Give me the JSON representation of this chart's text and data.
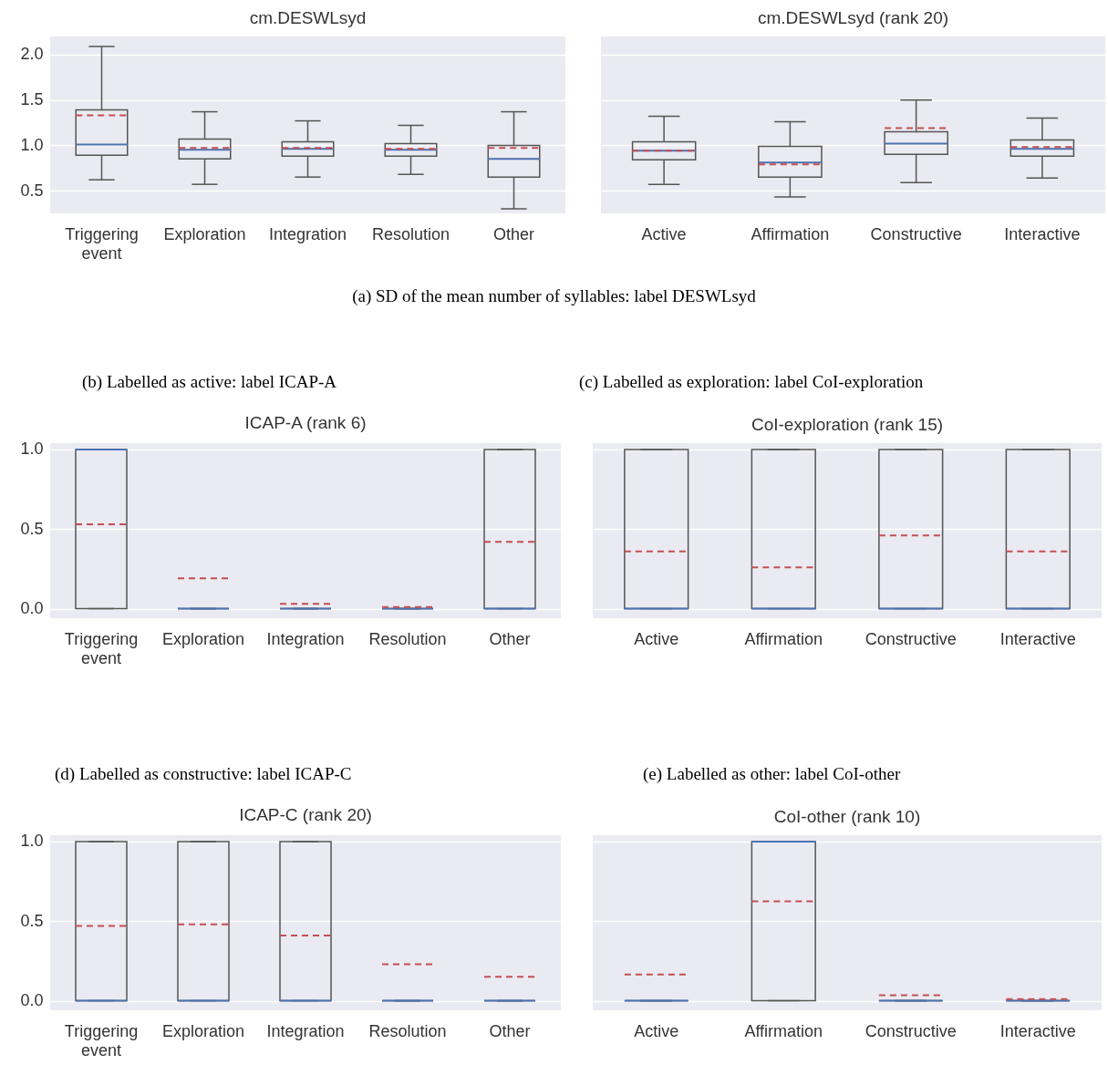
{
  "chart_data": [
    {
      "type": "box",
      "title": "cm.DESWLsyd",
      "categories": [
        "Triggering event",
        "Exploration",
        "Integration",
        "Resolution",
        "Other"
      ],
      "ylim": [
        0.25,
        2.2
      ],
      "yticks": [
        0.5,
        {
          "value": 1,
          "label": "1.0"
        },
        1.5,
        {
          "value": 2,
          "label": "2.0"
        }
      ],
      "grid": "y",
      "annotations": [
        "(a) SD of the mean number of syllables: label DESWLsyd"
      ],
      "boxes": [
        {
          "low": 0.62,
          "q1": 0.89,
          "median": 1.01,
          "q3": 1.39,
          "high": 2.09,
          "mean": 1.33
        },
        {
          "low": 0.57,
          "q1": 0.85,
          "median": 0.95,
          "q3": 1.07,
          "high": 1.37,
          "mean": 0.97
        },
        {
          "low": 0.65,
          "q1": 0.88,
          "median": 0.96,
          "q3": 1.04,
          "high": 1.27,
          "mean": 0.97
        },
        {
          "low": 0.68,
          "q1": 0.88,
          "median": 0.95,
          "q3": 1.02,
          "high": 1.22,
          "mean": 0.96
        },
        {
          "low": 0.3,
          "q1": 0.65,
          "median": 0.85,
          "q3": 1.0,
          "high": 1.37,
          "mean": 0.97
        }
      ]
    },
    {
      "type": "box",
      "title": "cm.DESWLsyd (rank 20)",
      "categories": [
        "Active",
        "Affirmation",
        "Constructive",
        "Interactive"
      ],
      "ylim": [
        0.25,
        2.2
      ],
      "yticks": [
        0.5,
        1,
        1.5,
        2
      ],
      "grid": "y",
      "tick_labels": "x",
      "boxes": [
        {
          "low": 0.57,
          "q1": 0.84,
          "median": 0.94,
          "q3": 1.04,
          "high": 1.32,
          "mean": 0.94
        },
        {
          "low": 0.43,
          "q1": 0.65,
          "median": 0.81,
          "q3": 0.99,
          "high": 1.26,
          "mean": 0.79
        },
        {
          "low": 0.59,
          "q1": 0.9,
          "median": 1.02,
          "q3": 1.15,
          "high": 1.5,
          "mean": 1.19
        },
        {
          "low": 0.64,
          "q1": 0.88,
          "median": 0.96,
          "q3": 1.06,
          "high": 1.3,
          "mean": 0.98
        }
      ]
    },
    {
      "type": "box",
      "title": "ICAP-A (rank 6)",
      "categories": [
        "Triggering event",
        "Exploration",
        "Integration",
        "Resolution",
        "Other"
      ],
      "ylim": [
        -0.06,
        1.04
      ],
      "yticks": [
        {
          "value": 0,
          "label": "0.0"
        },
        0.5,
        {
          "value": 1,
          "label": "1.0"
        }
      ],
      "grid": "y",
      "annotations": [
        "(b) Labelled as active: label ICAP-A"
      ],
      "boxes": [
        {
          "low": 0,
          "q1": 0,
          "median": 1,
          "q3": 1,
          "high": 1,
          "mean": 0.53
        },
        {
          "low": 0,
          "q1": 0,
          "median": 0,
          "q3": 0,
          "high": 0,
          "mean": 0.19
        },
        {
          "low": 0,
          "q1": 0,
          "median": 0,
          "q3": 0,
          "high": 0,
          "mean": 0.03
        },
        {
          "low": 0,
          "q1": 0,
          "median": 0,
          "q3": 0,
          "high": 0,
          "mean": 0.01
        },
        {
          "low": 0,
          "q1": 0,
          "median": 0,
          "q3": 1,
          "high": 1,
          "mean": 0.42
        }
      ]
    },
    {
      "type": "box",
      "title": "CoI-exploration (rank 15)",
      "categories": [
        "Active",
        "Affirmation",
        "Constructive",
        "Interactive"
      ],
      "ylim": [
        -0.06,
        1.04
      ],
      "yticks": [
        0,
        0.5,
        1
      ],
      "grid": "y",
      "tick_labels": "x",
      "annotations": [
        "(c) Labelled as exploration: label CoI-exploration"
      ],
      "boxes": [
        {
          "low": 0,
          "q1": 0,
          "median": 0,
          "q3": 1,
          "high": 1,
          "mean": 0.36
        },
        {
          "low": 0,
          "q1": 0,
          "median": 0,
          "q3": 1,
          "high": 1,
          "mean": 0.26
        },
        {
          "low": 0,
          "q1": 0,
          "median": 0,
          "q3": 1,
          "high": 1,
          "mean": 0.46
        },
        {
          "low": 0,
          "q1": 0,
          "median": 0,
          "q3": 1,
          "high": 1,
          "mean": 0.36
        }
      ]
    },
    {
      "type": "box",
      "title": "ICAP-C (rank 20)",
      "categories": [
        "Triggering event",
        "Exploration",
        "Integration",
        "Resolution",
        "Other"
      ],
      "ylim": [
        -0.06,
        1.04
      ],
      "yticks": [
        {
          "value": 0,
          "label": "0.0"
        },
        0.5,
        {
          "value": 1,
          "label": "1.0"
        }
      ],
      "grid": "y",
      "annotations": [
        "(d) Labelled as constructive: label ICAP-C"
      ],
      "boxes": [
        {
          "low": 0,
          "q1": 0,
          "median": 0,
          "q3": 1,
          "high": 1,
          "mean": 0.47
        },
        {
          "low": 0,
          "q1": 0,
          "median": 0,
          "q3": 1,
          "high": 1,
          "mean": 0.48
        },
        {
          "low": 0,
          "q1": 0,
          "median": 0,
          "q3": 1,
          "high": 1,
          "mean": 0.41
        },
        {
          "low": 0,
          "q1": 0,
          "median": 0,
          "q3": 0,
          "high": 0,
          "mean": 0.23
        },
        {
          "low": 0,
          "q1": 0,
          "median": 0,
          "q3": 0,
          "high": 0,
          "mean": 0.15
        }
      ]
    },
    {
      "type": "box",
      "title": "CoI-other (rank 10)",
      "categories": [
        "Active",
        "Affirmation",
        "Constructive",
        "Interactive"
      ],
      "ylim": [
        -0.06,
        1.04
      ],
      "yticks": [
        0,
        0.5,
        1
      ],
      "grid": "y",
      "tick_labels": "x",
      "annotations": [
        "(e) Labelled as other: label CoI-other"
      ],
      "boxes": [
        {
          "low": 0,
          "q1": 0,
          "median": 0,
          "q3": 0,
          "high": 0,
          "mean": 0.165
        },
        {
          "low": 0,
          "q1": 0,
          "median": 1,
          "q3": 1,
          "high": 1,
          "mean": 0.625
        },
        {
          "low": 0,
          "q1": 0,
          "median": 0,
          "q3": 0,
          "high": 0,
          "mean": 0.035
        },
        {
          "low": 0,
          "q1": 0,
          "median": 0,
          "q3": 0,
          "high": 0,
          "mean": 0.01
        }
      ]
    }
  ]
}
